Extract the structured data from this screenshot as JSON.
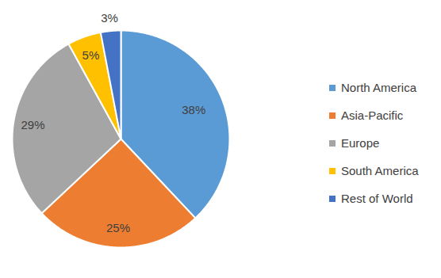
{
  "chart_data": {
    "type": "pie",
    "categories": [
      "North America",
      "Asia-Pacific",
      "Europe",
      "South America",
      "Rest of World"
    ],
    "values": [
      38,
      25,
      29,
      5,
      3
    ],
    "value_labels": [
      "38%",
      "25%",
      "29%",
      "5%",
      "3%"
    ],
    "colors": [
      "#5b9bd5",
      "#ed7d31",
      "#a5a5a5",
      "#ffc000",
      "#4472c4"
    ],
    "data_labels": true,
    "legend": "right"
  }
}
